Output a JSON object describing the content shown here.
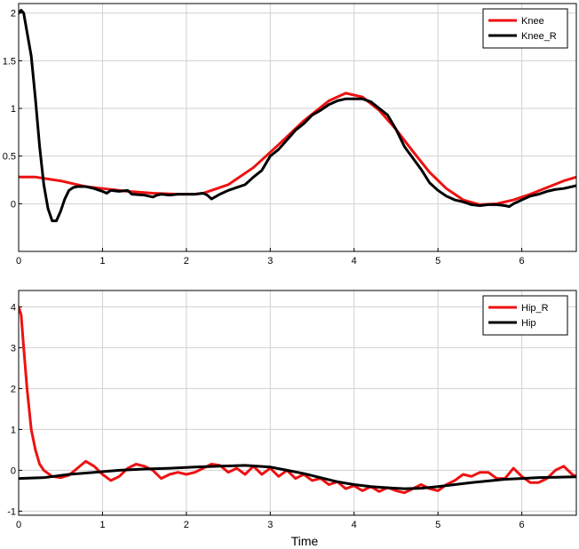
{
  "chart_data": [
    {
      "type": "line",
      "title": "",
      "xlabel": "",
      "ylabel": "",
      "xlim": [
        0,
        6.65
      ],
      "ylim": [
        -0.5,
        2.1
      ],
      "grid": true,
      "legend_position": "top-right",
      "x_ticks": [
        "0",
        "1",
        "2",
        "3",
        "4",
        "5",
        "6"
      ],
      "y_ticks": [
        "0",
        "0.5",
        "1",
        "1.5",
        "2"
      ],
      "series": [
        {
          "name": "Knee",
          "color": "#ee1111",
          "points": [
            [
              0,
              0.28
            ],
            [
              0.2,
              0.28
            ],
            [
              0.5,
              0.24
            ],
            [
              0.8,
              0.18
            ],
            [
              1.0,
              0.16
            ],
            [
              1.3,
              0.13
            ],
            [
              1.6,
              0.11
            ],
            [
              1.9,
              0.1
            ],
            [
              2.1,
              0.1
            ],
            [
              2.2,
              0.11
            ],
            [
              2.5,
              0.2
            ],
            [
              2.8,
              0.38
            ],
            [
              3.1,
              0.62
            ],
            [
              3.4,
              0.87
            ],
            [
              3.7,
              1.08
            ],
            [
              3.9,
              1.16
            ],
            [
              4.1,
              1.12
            ],
            [
              4.3,
              0.98
            ],
            [
              4.5,
              0.78
            ],
            [
              4.7,
              0.55
            ],
            [
              4.9,
              0.33
            ],
            [
              5.1,
              0.16
            ],
            [
              5.3,
              0.04
            ],
            [
              5.5,
              -0.01
            ],
            [
              5.7,
              0.0
            ],
            [
              5.9,
              0.04
            ],
            [
              6.1,
              0.1
            ],
            [
              6.3,
              0.17
            ],
            [
              6.5,
              0.24
            ],
            [
              6.65,
              0.28
            ]
          ]
        },
        {
          "name": "Knee_R",
          "color": "#000000",
          "points": [
            [
              0,
              2.0
            ],
            [
              0.03,
              2.03
            ],
            [
              0.06,
              2.0
            ],
            [
              0.1,
              1.8
            ],
            [
              0.15,
              1.55
            ],
            [
              0.2,
              1.1
            ],
            [
              0.25,
              0.6
            ],
            [
              0.3,
              0.2
            ],
            [
              0.35,
              -0.05
            ],
            [
              0.4,
              -0.18
            ],
            [
              0.45,
              -0.18
            ],
            [
              0.5,
              -0.08
            ],
            [
              0.55,
              0.05
            ],
            [
              0.6,
              0.14
            ],
            [
              0.65,
              0.17
            ],
            [
              0.7,
              0.18
            ],
            [
              0.8,
              0.18
            ],
            [
              0.9,
              0.16
            ],
            [
              1.0,
              0.13
            ],
            [
              1.05,
              0.11
            ],
            [
              1.1,
              0.14
            ],
            [
              1.2,
              0.13
            ],
            [
              1.3,
              0.14
            ],
            [
              1.35,
              0.1
            ],
            [
              1.5,
              0.09
            ],
            [
              1.6,
              0.07
            ],
            [
              1.65,
              0.09
            ],
            [
              1.7,
              0.1
            ],
            [
              1.8,
              0.09
            ],
            [
              1.9,
              0.1
            ],
            [
              2.0,
              0.1
            ],
            [
              2.1,
              0.1
            ],
            [
              2.2,
              0.11
            ],
            [
              2.25,
              0.09
            ],
            [
              2.3,
              0.05
            ],
            [
              2.4,
              0.1
            ],
            [
              2.5,
              0.14
            ],
            [
              2.6,
              0.17
            ],
            [
              2.7,
              0.2
            ],
            [
              2.8,
              0.28
            ],
            [
              2.9,
              0.35
            ],
            [
              3.0,
              0.5
            ],
            [
              3.1,
              0.57
            ],
            [
              3.2,
              0.67
            ],
            [
              3.3,
              0.77
            ],
            [
              3.4,
              0.84
            ],
            [
              3.5,
              0.93
            ],
            [
              3.6,
              0.98
            ],
            [
              3.7,
              1.04
            ],
            [
              3.8,
              1.08
            ],
            [
              3.9,
              1.1
            ],
            [
              4.0,
              1.1
            ],
            [
              4.1,
              1.1
            ],
            [
              4.2,
              1.07
            ],
            [
              4.3,
              1.0
            ],
            [
              4.4,
              0.93
            ],
            [
              4.5,
              0.78
            ],
            [
              4.6,
              0.6
            ],
            [
              4.7,
              0.48
            ],
            [
              4.8,
              0.36
            ],
            [
              4.9,
              0.22
            ],
            [
              5.0,
              0.14
            ],
            [
              5.1,
              0.08
            ],
            [
              5.2,
              0.04
            ],
            [
              5.3,
              0.02
            ],
            [
              5.4,
              -0.01
            ],
            [
              5.5,
              -0.02
            ],
            [
              5.6,
              -0.01
            ],
            [
              5.7,
              -0.01
            ],
            [
              5.8,
              -0.02
            ],
            [
              5.85,
              -0.03
            ],
            [
              5.9,
              0.0
            ],
            [
              6.0,
              0.04
            ],
            [
              6.1,
              0.08
            ],
            [
              6.2,
              0.1
            ],
            [
              6.3,
              0.13
            ],
            [
              6.4,
              0.15
            ],
            [
              6.5,
              0.16
            ],
            [
              6.6,
              0.18
            ],
            [
              6.65,
              0.19
            ]
          ]
        }
      ]
    },
    {
      "type": "line",
      "title": "",
      "xlabel": "Time",
      "ylabel": "",
      "xlim": [
        0,
        6.65
      ],
      "ylim": [
        -1.1,
        4.4
      ],
      "grid": true,
      "legend_position": "top-right",
      "x_ticks": [
        "0",
        "1",
        "2",
        "3",
        "4",
        "5",
        "6"
      ],
      "y_ticks": [
        "-1",
        "0",
        "1",
        "2",
        "3",
        "4"
      ],
      "series": [
        {
          "name": "Hip_R",
          "color": "#ee1111",
          "points": [
            [
              0,
              4.0
            ],
            [
              0.03,
              3.8
            ],
            [
              0.06,
              3.0
            ],
            [
              0.1,
              2.0
            ],
            [
              0.15,
              1.0
            ],
            [
              0.2,
              0.5
            ],
            [
              0.25,
              0.15
            ],
            [
              0.3,
              0.0
            ],
            [
              0.4,
              -0.15
            ],
            [
              0.5,
              -0.18
            ],
            [
              0.6,
              -0.12
            ],
            [
              0.7,
              0.05
            ],
            [
              0.8,
              0.22
            ],
            [
              0.9,
              0.1
            ],
            [
              1.0,
              -0.1
            ],
            [
              1.1,
              -0.25
            ],
            [
              1.2,
              -0.15
            ],
            [
              1.3,
              0.05
            ],
            [
              1.4,
              0.15
            ],
            [
              1.5,
              0.1
            ],
            [
              1.6,
              0.0
            ],
            [
              1.7,
              -0.2
            ],
            [
              1.8,
              -0.1
            ],
            [
              1.9,
              -0.05
            ],
            [
              2.0,
              -0.1
            ],
            [
              2.1,
              -0.05
            ],
            [
              2.2,
              0.05
            ],
            [
              2.3,
              0.15
            ],
            [
              2.4,
              0.12
            ],
            [
              2.5,
              -0.05
            ],
            [
              2.6,
              0.05
            ],
            [
              2.7,
              -0.1
            ],
            [
              2.8,
              0.1
            ],
            [
              2.9,
              -0.1
            ],
            [
              3.0,
              0.05
            ],
            [
              3.1,
              -0.15
            ],
            [
              3.2,
              0.0
            ],
            [
              3.3,
              -0.2
            ],
            [
              3.4,
              -0.1
            ],
            [
              3.5,
              -0.25
            ],
            [
              3.6,
              -0.2
            ],
            [
              3.7,
              -0.35
            ],
            [
              3.8,
              -0.28
            ],
            [
              3.9,
              -0.45
            ],
            [
              4.0,
              -0.38
            ],
            [
              4.1,
              -0.5
            ],
            [
              4.2,
              -0.4
            ],
            [
              4.3,
              -0.52
            ],
            [
              4.4,
              -0.42
            ],
            [
              4.5,
              -0.5
            ],
            [
              4.6,
              -0.55
            ],
            [
              4.7,
              -0.45
            ],
            [
              4.8,
              -0.35
            ],
            [
              4.9,
              -0.45
            ],
            [
              5.0,
              -0.5
            ],
            [
              5.1,
              -0.35
            ],
            [
              5.2,
              -0.25
            ],
            [
              5.3,
              -0.1
            ],
            [
              5.4,
              -0.15
            ],
            [
              5.5,
              -0.05
            ],
            [
              5.6,
              -0.05
            ],
            [
              5.7,
              -0.2
            ],
            [
              5.8,
              -0.2
            ],
            [
              5.9,
              0.05
            ],
            [
              6.0,
              -0.15
            ],
            [
              6.1,
              -0.3
            ],
            [
              6.2,
              -0.3
            ],
            [
              6.3,
              -0.2
            ],
            [
              6.4,
              0.0
            ],
            [
              6.5,
              0.1
            ],
            [
              6.6,
              -0.1
            ],
            [
              6.65,
              -0.15
            ]
          ]
        },
        {
          "name": "Hip",
          "color": "#000000",
          "points": [
            [
              0,
              -0.2
            ],
            [
              0.3,
              -0.18
            ],
            [
              0.6,
              -0.1
            ],
            [
              0.9,
              -0.05
            ],
            [
              1.2,
              0.0
            ],
            [
              1.5,
              0.03
            ],
            [
              1.8,
              0.05
            ],
            [
              2.1,
              0.08
            ],
            [
              2.4,
              0.1
            ],
            [
              2.7,
              0.12
            ],
            [
              3.0,
              0.08
            ],
            [
              3.2,
              0.0
            ],
            [
              3.4,
              -0.08
            ],
            [
              3.6,
              -0.18
            ],
            [
              3.8,
              -0.28
            ],
            [
              4.0,
              -0.35
            ],
            [
              4.2,
              -0.4
            ],
            [
              4.4,
              -0.43
            ],
            [
              4.6,
              -0.45
            ],
            [
              4.8,
              -0.44
            ],
            [
              5.0,
              -0.4
            ],
            [
              5.2,
              -0.35
            ],
            [
              5.4,
              -0.3
            ],
            [
              5.6,
              -0.26
            ],
            [
              5.8,
              -0.22
            ],
            [
              6.0,
              -0.2
            ],
            [
              6.2,
              -0.18
            ],
            [
              6.4,
              -0.17
            ],
            [
              6.65,
              -0.16
            ]
          ]
        }
      ]
    }
  ],
  "colors": {
    "grid": "#d0d0d0",
    "axis": "#000000",
    "background": "#ffffff"
  }
}
